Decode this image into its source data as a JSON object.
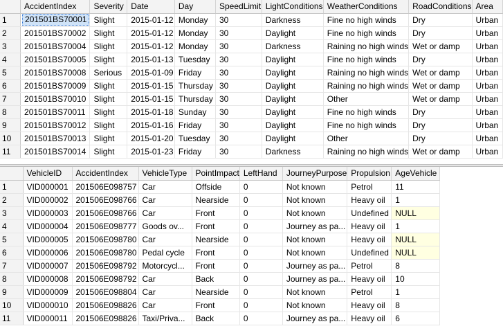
{
  "grid1": {
    "columns": [
      "",
      "AccidentIndex",
      "Severity",
      "Date",
      "Day",
      "SpeedLimit",
      "LightConditions",
      "WeatherConditions",
      "RoadConditions",
      "Area"
    ],
    "rows": [
      [
        "1",
        "201501BS70001",
        "Slight",
        "2015-01-12",
        "Monday",
        "30",
        "Darkness",
        "Fine no high winds",
        "Dry",
        "Urban"
      ],
      [
        "2",
        "201501BS70002",
        "Slight",
        "2015-01-12",
        "Monday",
        "30",
        "Daylight",
        "Fine no high winds",
        "Dry",
        "Urban"
      ],
      [
        "3",
        "201501BS70004",
        "Slight",
        "2015-01-12",
        "Monday",
        "30",
        "Darkness",
        "Raining no high winds",
        "Wet or damp",
        "Urban"
      ],
      [
        "4",
        "201501BS70005",
        "Slight",
        "2015-01-13",
        "Tuesday",
        "30",
        "Daylight",
        "Fine no high winds",
        "Dry",
        "Urban"
      ],
      [
        "5",
        "201501BS70008",
        "Serious",
        "2015-01-09",
        "Friday",
        "30",
        "Daylight",
        "Raining no high winds",
        "Wet or damp",
        "Urban"
      ],
      [
        "6",
        "201501BS70009",
        "Slight",
        "2015-01-15",
        "Thursday",
        "30",
        "Daylight",
        "Raining no high winds",
        "Wet or damp",
        "Urban"
      ],
      [
        "7",
        "201501BS70010",
        "Slight",
        "2015-01-15",
        "Thursday",
        "30",
        "Daylight",
        "Other",
        "Wet or damp",
        "Urban"
      ],
      [
        "8",
        "201501BS70011",
        "Slight",
        "2015-01-18",
        "Sunday",
        "30",
        "Daylight",
        "Fine no high winds",
        "Dry",
        "Urban"
      ],
      [
        "9",
        "201501BS70012",
        "Slight",
        "2015-01-16",
        "Friday",
        "30",
        "Daylight",
        "Fine no high winds",
        "Dry",
        "Urban"
      ],
      [
        "10",
        "201501BS70013",
        "Slight",
        "2015-01-20",
        "Tuesday",
        "30",
        "Daylight",
        "Other",
        "Dry",
        "Urban"
      ],
      [
        "11",
        "201501BS70014",
        "Slight",
        "2015-01-23",
        "Friday",
        "30",
        "Darkness",
        "Raining no high winds",
        "Wet or damp",
        "Urban"
      ]
    ]
  },
  "grid2": {
    "columns": [
      "",
      "VehicleID",
      "AccidentIndex",
      "VehicleType",
      "PointImpact",
      "LeftHand",
      "JourneyPurpose",
      "Propulsion",
      "AgeVehicle"
    ],
    "rows": [
      [
        "1",
        "VID000001",
        "201506E098757",
        "Car",
        "Offside",
        "0",
        "Not known",
        "Petrol",
        "11"
      ],
      [
        "2",
        "VID000002",
        "201506E098766",
        "Car",
        "Nearside",
        "0",
        "Not known",
        "Heavy oil",
        "1"
      ],
      [
        "3",
        "VID000003",
        "201506E098766",
        "Car",
        "Front",
        "0",
        "Not known",
        "Undefined",
        "NULL"
      ],
      [
        "4",
        "VID000004",
        "201506E098777",
        "Goods ov...",
        "Front",
        "0",
        "Journey as pa...",
        "Heavy oil",
        "1"
      ],
      [
        "5",
        "VID000005",
        "201506E098780",
        "Car",
        "Nearside",
        "0",
        "Not known",
        "Heavy oil",
        "NULL"
      ],
      [
        "6",
        "VID000006",
        "201506E098780",
        "Pedal cycle",
        "Front",
        "0",
        "Not known",
        "Undefined",
        "NULL"
      ],
      [
        "7",
        "VID000007",
        "201506E098792",
        "Motorcycl...",
        "Front",
        "0",
        "Journey as pa...",
        "Petrol",
        "8"
      ],
      [
        "8",
        "VID000008",
        "201506E098792",
        "Car",
        "Back",
        "0",
        "Journey as pa...",
        "Heavy oil",
        "10"
      ],
      [
        "9",
        "VID000009",
        "201506E098804",
        "Car",
        "Nearside",
        "0",
        "Not known",
        "Petrol",
        "1"
      ],
      [
        "10",
        "VID000010",
        "201506E098826",
        "Car",
        "Front",
        "0",
        "Not known",
        "Heavy oil",
        "8"
      ],
      [
        "11",
        "VID000011",
        "201506E098826",
        "Taxi/Priva...",
        "Back",
        "0",
        "Journey as pa...",
        "Heavy oil",
        "6"
      ]
    ]
  },
  "colors": {
    "header_bg": "#f3f3f3",
    "selection_bg": "#cfe3f8",
    "null_bg": "#ffffe1",
    "gridline": "#e6e6e6"
  }
}
